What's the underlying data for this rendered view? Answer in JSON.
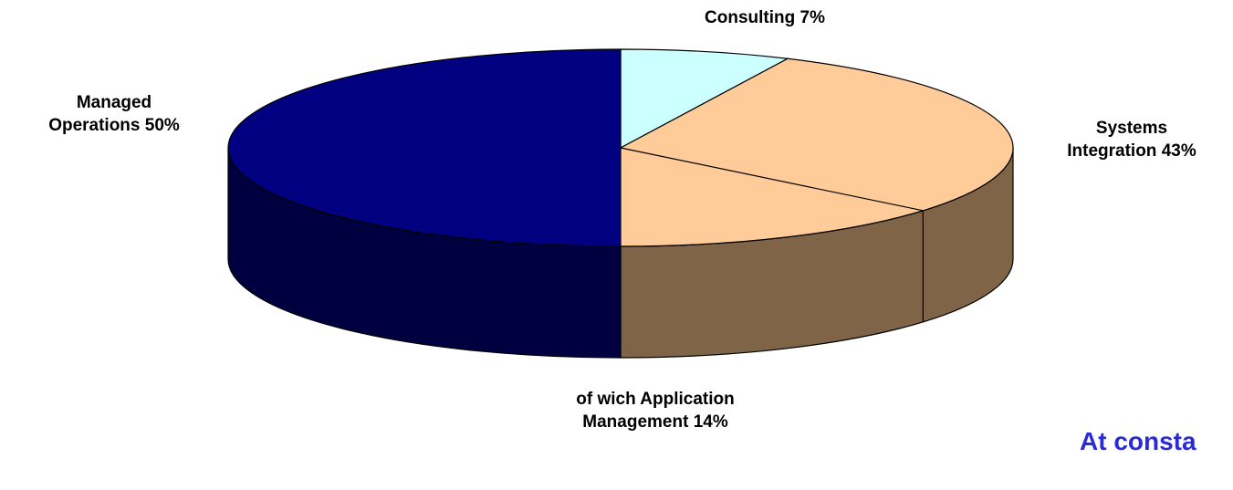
{
  "chart_data": {
    "type": "pie3d",
    "categories": [
      "Consulting",
      "Systems Integration",
      "Managed Operations"
    ],
    "values": [
      7,
      43,
      50
    ],
    "value_labels": [
      "7%",
      "43%",
      "50%"
    ],
    "colors": [
      "#ccffff",
      "#ffcc99",
      "#000080"
    ],
    "side_colors": [
      "#99bfbf",
      "#806448",
      "#000040"
    ],
    "sub_slice": {
      "prefix": "of wich",
      "name": "Application Management",
      "value": 14,
      "value_label": "14%"
    },
    "annotation": "At consta"
  }
}
